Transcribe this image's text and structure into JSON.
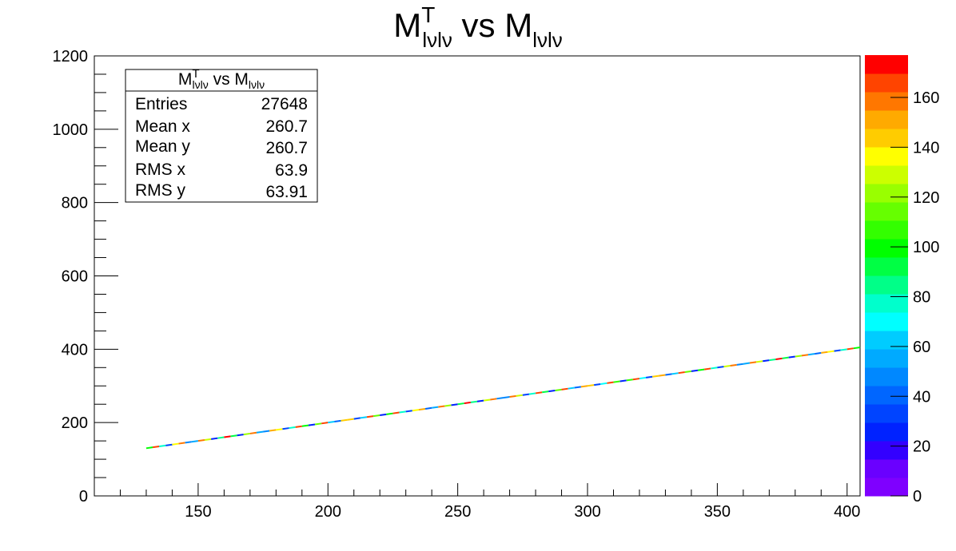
{
  "chart_data": {
    "type": "heatmap",
    "title": {
      "base": "M",
      "sup": "T",
      "sub": "lνlν",
      "mid": " vs ",
      "base2": "M",
      "sub2": "lνlν"
    },
    "xlabel": "",
    "ylabel": "",
    "xlim": [
      110,
      405
    ],
    "ylim": [
      0,
      1200
    ],
    "zlim": [
      0,
      177
    ],
    "x_ticks": [
      150,
      200,
      250,
      300,
      350,
      400
    ],
    "y_ticks": [
      0,
      200,
      400,
      600,
      800,
      1000,
      1200
    ],
    "z_ticks": [
      0,
      20,
      40,
      60,
      80,
      100,
      120,
      140,
      160
    ],
    "palette": [
      "#7f00ff",
      "#6a00ff",
      "#3300ff",
      "#0022ff",
      "#0044ff",
      "#0066ff",
      "#0088ff",
      "#00aaff",
      "#00ccff",
      "#00ffff",
      "#00ffcc",
      "#00ff88",
      "#00ff44",
      "#00ff00",
      "#33ff00",
      "#66ff00",
      "#99ff00",
      "#ccff00",
      "#ffff00",
      "#ffcc00",
      "#ffaa00",
      "#ff7700",
      "#ff4400",
      "#ff0000"
    ],
    "points": {
      "x_start": 130,
      "x_end": 405,
      "slope": 1.0,
      "z_min": 25,
      "z_max": 170
    },
    "grid": false,
    "legend": "top-left stats box"
  },
  "stats": {
    "title": {
      "base": "M",
      "sup": "T",
      "sub": "lνlν",
      "mid": " vs ",
      "base2": "M",
      "sub2": "lνlν"
    },
    "rows": [
      {
        "label": "Entries",
        "value": "27648"
      },
      {
        "label": "Mean x",
        "value": "260.7"
      },
      {
        "label": "Mean y",
        "value": "260.7"
      },
      {
        "label": "RMS x",
        "value": "63.9"
      },
      {
        "label": "RMS y",
        "value": "63.91"
      }
    ]
  }
}
